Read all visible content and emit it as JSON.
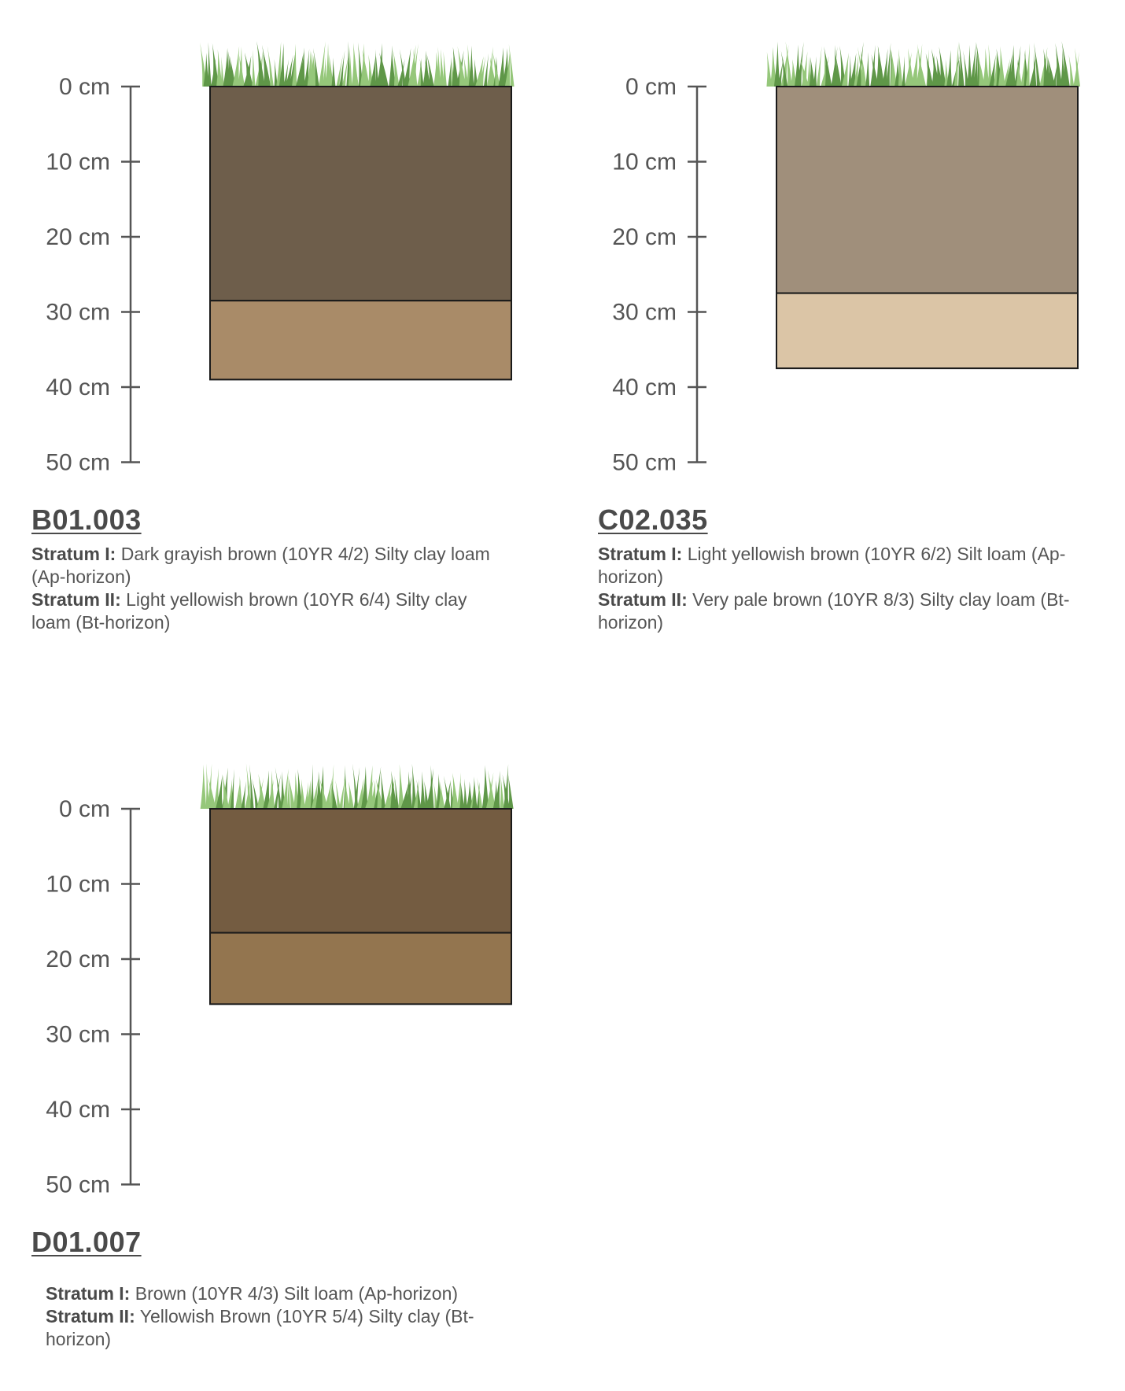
{
  "axis": {
    "unit": "cm",
    "ticks": [
      0,
      10,
      20,
      30,
      40,
      50
    ],
    "tick_labels": [
      "0 cm",
      "10 cm",
      "20 cm",
      "30 cm",
      "40 cm",
      "50 cm"
    ]
  },
  "colors": {
    "axis": "#555555",
    "grass_dark": "#5f9748",
    "grass_light": "#95c77a",
    "border": "#1a1a1a"
  },
  "profiles": [
    {
      "id": "B01.003",
      "strata": [
        {
          "label": "Stratum I:",
          "description": "Dark grayish brown (10YR 4/2) Silty clay loam (Ap-horizon)",
          "top_cm": 0,
          "bottom_cm": 28.5,
          "color": "#6e5e4b"
        },
        {
          "label": "Stratum II:",
          "description": "Light yellowish brown (10YR 6/4) Silty clay loam (Bt-horizon)",
          "top_cm": 28.5,
          "bottom_cm": 39,
          "color": "#a98b68"
        }
      ]
    },
    {
      "id": "C02.035",
      "strata": [
        {
          "label": "Stratum I:",
          "description": "Light yellowish brown (10YR 6/2) Silt loam (Ap-horizon)",
          "top_cm": 0,
          "bottom_cm": 27.5,
          "color": "#a08f7b"
        },
        {
          "label": "Stratum II:",
          "description": "Very pale brown (10YR 8/3) Silty clay loam (Bt-horizon)",
          "top_cm": 27.5,
          "bottom_cm": 37.5,
          "color": "#dbc5a6"
        }
      ]
    },
    {
      "id": "D01.007",
      "strata": [
        {
          "label": "Stratum I:",
          "description": "Brown (10YR 4/3) Silt loam (Ap-horizon)",
          "top_cm": 0,
          "bottom_cm": 16.5,
          "color": "#745c41"
        },
        {
          "label": "Stratum II:",
          "description": "Yellowish Brown (10YR 5/4) Silty clay (Bt-horizon)",
          "top_cm": 16.5,
          "bottom_cm": 26,
          "color": "#93754f"
        }
      ]
    }
  ]
}
